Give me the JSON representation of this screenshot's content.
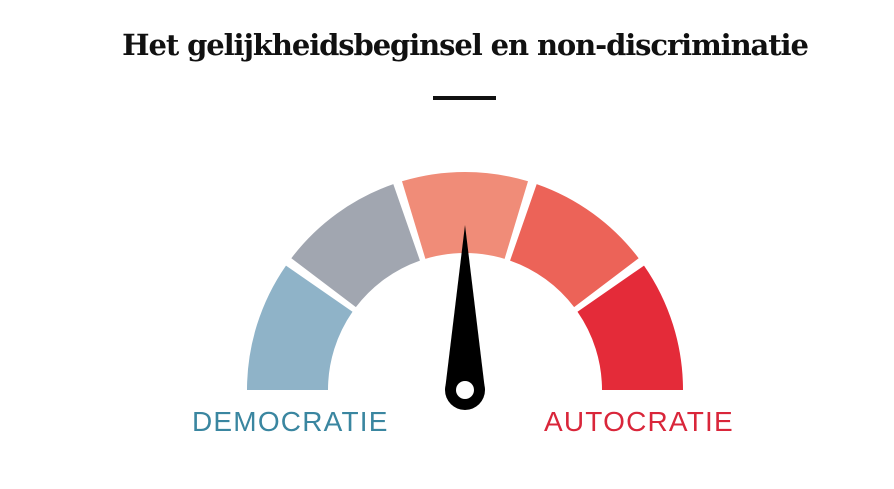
{
  "title": "Het gelijkheidsbeginsel en non-discriminatie",
  "chart_data": {
    "type": "gauge",
    "title": "Het gelijkheidsbeginsel en non-discriminatie",
    "scale_min_label": "DEMOCRATIE",
    "scale_max_label": "AUTOCRATIE",
    "segments": [
      {
        "index": 1,
        "color": "#8fb3c8"
      },
      {
        "index": 2,
        "color": "#a1a6b0"
      },
      {
        "index": 3,
        "color": "#f08c78"
      },
      {
        "index": 4,
        "color": "#ec6358"
      },
      {
        "index": 5,
        "color": "#e42b39"
      }
    ],
    "segment_count": 5,
    "needle_value": 3,
    "needle_color": "#000000"
  }
}
